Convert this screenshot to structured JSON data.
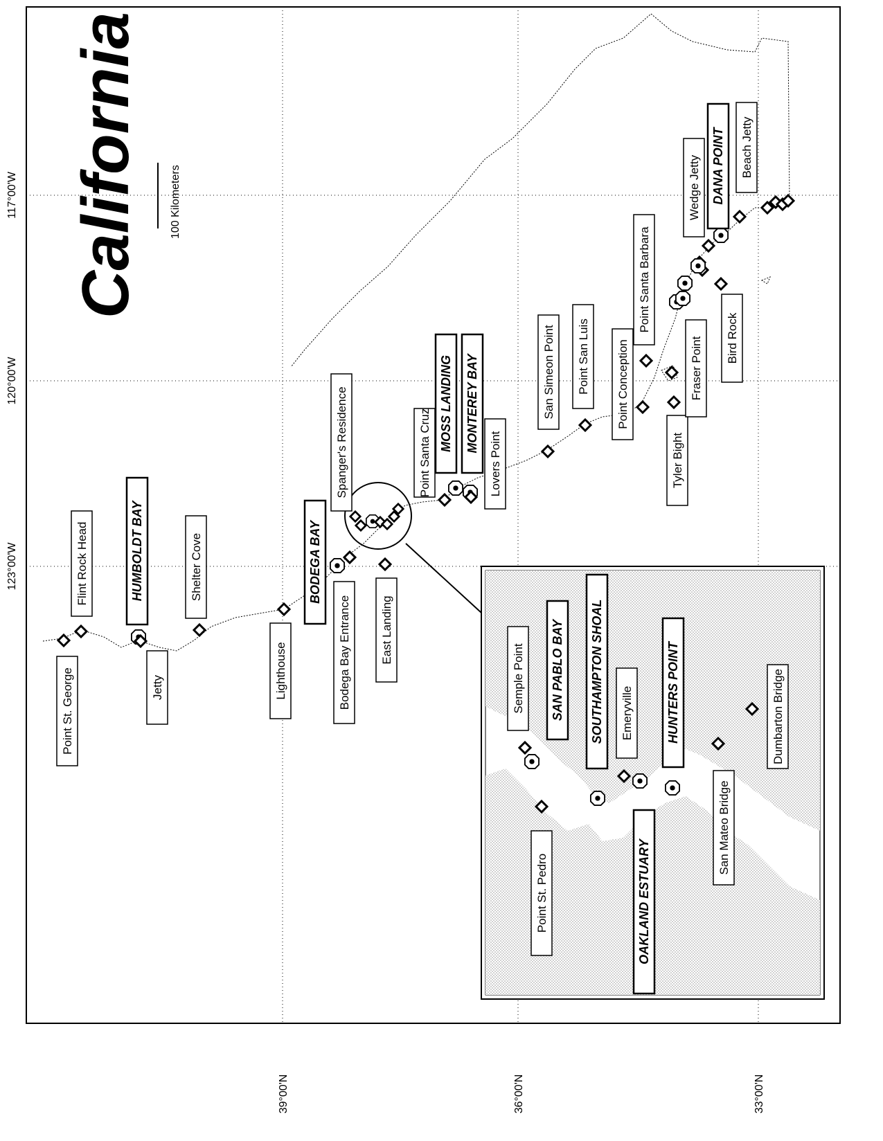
{
  "map": {
    "title": "California",
    "scale_label": "100 Kilometers",
    "longitude_ticks": [
      "123°00'W",
      "120°00'W",
      "117°00'W"
    ],
    "latitude_ticks": [
      "39°00'N",
      "36°00'N",
      "33°00'N"
    ]
  },
  "sites": [
    {
      "label": "Point St. George",
      "style": "normal"
    },
    {
      "label": "Flint Rock Head",
      "style": "normal"
    },
    {
      "label": "HUMBOLDT BAY",
      "style": "bold"
    },
    {
      "label": "Jetty",
      "style": "normal"
    },
    {
      "label": "Shelter Cove",
      "style": "normal"
    },
    {
      "label": "Lighthouse",
      "style": "normal"
    },
    {
      "label": "BODEGA BAY",
      "style": "bold"
    },
    {
      "label": "Bodega Bay Entrance",
      "style": "normal"
    },
    {
      "label": "East Landing",
      "style": "normal"
    },
    {
      "label": "Spanger's Residence",
      "style": "normal"
    },
    {
      "label": "Point Santa Cruz",
      "style": "normal"
    },
    {
      "label": "MOSS LANDING",
      "style": "bold"
    },
    {
      "label": "MONTEREY BAY",
      "style": "bold"
    },
    {
      "label": "Lovers Point",
      "style": "normal"
    },
    {
      "label": "San Simeon Point",
      "style": "normal"
    },
    {
      "label": "Point San Luis",
      "style": "normal"
    },
    {
      "label": "Point Conception",
      "style": "normal"
    },
    {
      "label": "Point Santa Barbara",
      "style": "normal"
    },
    {
      "label": "Tyler Bight",
      "style": "normal"
    },
    {
      "label": "Fraser Point",
      "style": "normal"
    },
    {
      "label": "Bird Rock",
      "style": "normal"
    },
    {
      "label": "Wedge Jetty",
      "style": "normal"
    },
    {
      "label": "DANA POINT",
      "style": "bold"
    },
    {
      "label": "Beach Jetty",
      "style": "normal"
    }
  ],
  "inset_sites": [
    {
      "label": "Semple Point",
      "style": "normal"
    },
    {
      "label": "SAN PABLO BAY",
      "style": "bold"
    },
    {
      "label": "SOUTHAMPTON SHOAL",
      "style": "bold"
    },
    {
      "label": "Emeryville",
      "style": "normal"
    },
    {
      "label": "HUNTERS POINT",
      "style": "bold"
    },
    {
      "label": "Dumbarton Bridge",
      "style": "normal"
    },
    {
      "label": "Point St. Pedro",
      "style": "normal"
    },
    {
      "label": "OAKLAND ESTUARY",
      "style": "bold"
    },
    {
      "label": "San Mateo Bridge",
      "style": "normal"
    }
  ]
}
